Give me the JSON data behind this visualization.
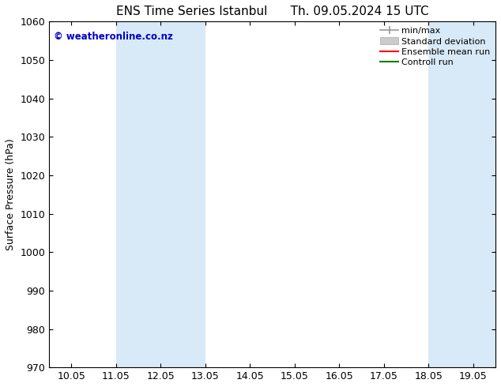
{
  "title": "ENS Time Series Istanbul",
  "subtitle": "Th. 09.05.2024 15 UTC",
  "ylabel": "Surface Pressure (hPa)",
  "ylim": [
    970,
    1060
  ],
  "yticks": [
    970,
    980,
    990,
    1000,
    1010,
    1020,
    1030,
    1040,
    1050,
    1060
  ],
  "xtick_labels": [
    "10.05",
    "11.05",
    "12.05",
    "13.05",
    "14.05",
    "15.05",
    "16.05",
    "17.05",
    "18.05",
    "19.05"
  ],
  "xtick_positions": [
    0,
    1,
    2,
    3,
    4,
    5,
    6,
    7,
    8,
    9
  ],
  "xlim": [
    -0.5,
    9.5
  ],
  "shaded_bands": [
    {
      "x_start": 1.0,
      "x_end": 3.0
    },
    {
      "x_start": 8.0,
      "x_end": 9.0
    },
    {
      "x_start": 9.0,
      "x_end": 9.5
    }
  ],
  "watermark_text": "© weatheronline.co.nz",
  "watermark_color": "#0000cc",
  "background_color": "#ffffff",
  "shade_color": "#d8eaf8",
  "legend_entries": [
    {
      "label": "min/max",
      "color": "#999999",
      "lw": 1.2
    },
    {
      "label": "Standard deviation",
      "color": "#bbbbbb",
      "lw": 6
    },
    {
      "label": "Ensemble mean run",
      "color": "#ff0000",
      "lw": 1.5
    },
    {
      "label": "Controll run",
      "color": "#008000",
      "lw": 1.5
    }
  ],
  "title_fontsize": 11,
  "axis_fontsize": 9,
  "tick_fontsize": 9,
  "legend_fontsize": 8
}
